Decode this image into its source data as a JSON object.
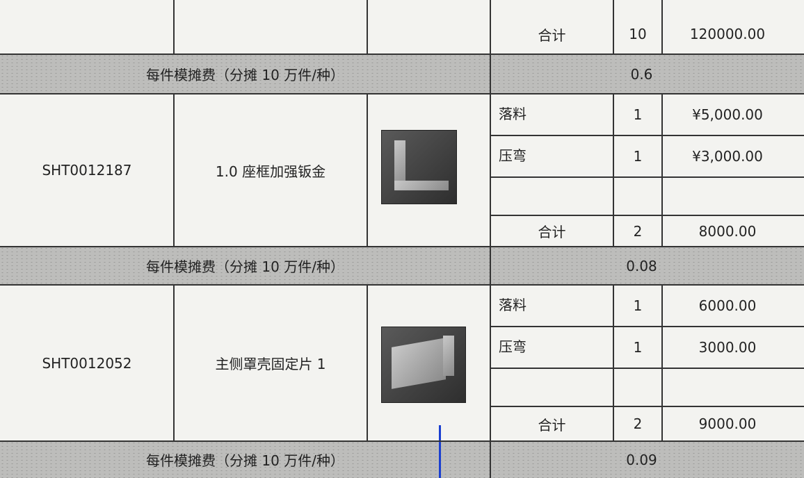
{
  "table": {
    "top": {
      "total_label": "合计",
      "total_qty": "10",
      "total_cost": "120000.00",
      "fee_label": "每件模摊费（分摊 10 万件/种）",
      "fee_value": "0.6"
    },
    "parts": [
      {
        "code": "SHT0012187",
        "name": "1.0 座框加强钣金",
        "processes": [
          {
            "name": "落料",
            "qty": "1",
            "cost": "¥5,000.00"
          },
          {
            "name": "压弯",
            "qty": "1",
            "cost": "¥3,000.00"
          }
        ],
        "total_label": "合计",
        "total_qty": "2",
        "total_cost": "8000.00",
        "fee_label": "每件模摊费（分摊 10 万件/种）",
        "fee_value": "0.08"
      },
      {
        "code": "SHT0012052",
        "name": "主侧罩壳固定片 1",
        "processes": [
          {
            "name": "落料",
            "qty": "1",
            "cost": "6000.00"
          },
          {
            "name": "压弯",
            "qty": "1",
            "cost": "3000.00"
          }
        ],
        "total_label": "合计",
        "total_qty": "2",
        "total_cost": "9000.00",
        "fee_label": "每件模摊费（分摊 10 万件/种）",
        "fee_value": "0.09"
      }
    ]
  }
}
